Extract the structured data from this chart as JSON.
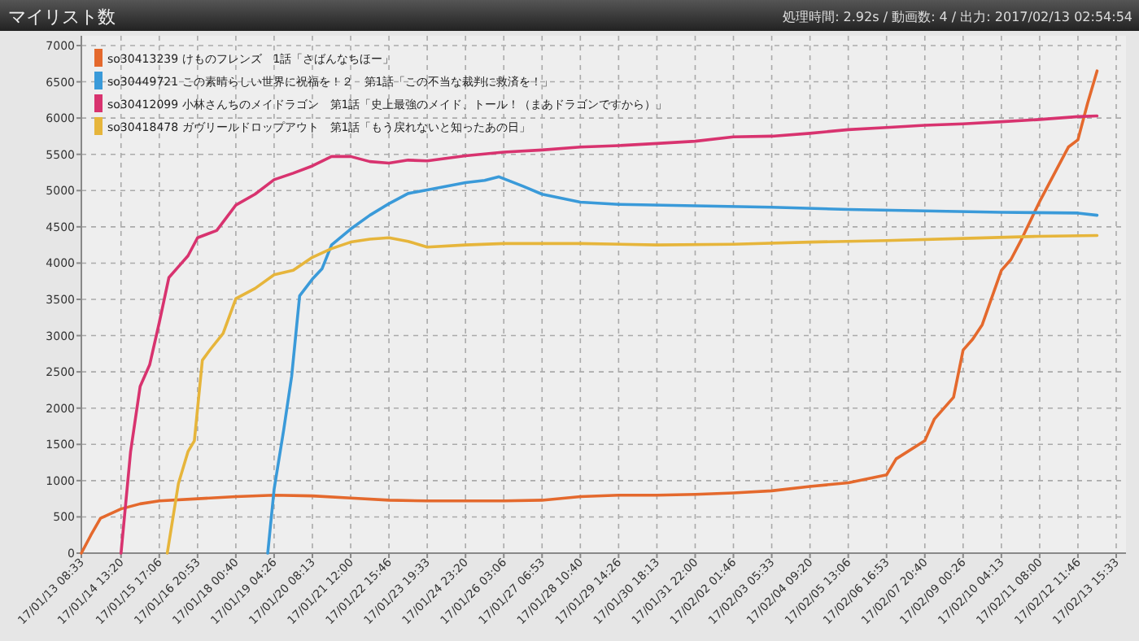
{
  "chart_data": {
    "type": "line",
    "title": "マイリスト数",
    "annotations": [
      "処理時間: 2.92s / 動画数: 4 / 出力: 2017/02/13 02:54:54"
    ],
    "xlim": [
      "2017-01-13T08:33",
      "2017-02-13T15:33"
    ],
    "xticks": [
      {
        "value": "2017-01-13T08:33",
        "label": "17/01/13 08:33"
      },
      {
        "value": "2017-01-14T13:20",
        "label": "17/01/14 13:20"
      },
      {
        "value": "2017-01-15T17:06",
        "label": "17/01/15 17:06"
      },
      {
        "value": "2017-01-16T20:53",
        "label": "17/01/16 20:53"
      },
      {
        "value": "2017-01-18T00:40",
        "label": "17/01/18 00:40"
      },
      {
        "value": "2017-01-19T04:26",
        "label": "17/01/19 04:26"
      },
      {
        "value": "2017-01-20T08:13",
        "label": "17/01/20 08:13"
      },
      {
        "value": "2017-01-21T12:00",
        "label": "17/01/21 12:00"
      },
      {
        "value": "2017-01-22T15:46",
        "label": "17/01/22 15:46"
      },
      {
        "value": "2017-01-23T19:33",
        "label": "17/01/23 19:33"
      },
      {
        "value": "2017-01-24T23:20",
        "label": "17/01/24 23:20"
      },
      {
        "value": "2017-01-26T03:06",
        "label": "17/01/26 03:06"
      },
      {
        "value": "2017-01-27T06:53",
        "label": "17/01/27 06:53"
      },
      {
        "value": "2017-01-28T10:40",
        "label": "17/01/28 10:40"
      },
      {
        "value": "2017-01-29T14:26",
        "label": "17/01/29 14:26"
      },
      {
        "value": "2017-01-30T18:13",
        "label": "17/01/30 18:13"
      },
      {
        "value": "2017-01-31T22:00",
        "label": "17/01/31 22:00"
      },
      {
        "value": "2017-02-02T01:46",
        "label": "17/02/02 01:46"
      },
      {
        "value": "2017-02-03T05:33",
        "label": "17/02/03 05:33"
      },
      {
        "value": "2017-02-04T09:20",
        "label": "17/02/04 09:20"
      },
      {
        "value": "2017-02-05T13:06",
        "label": "17/02/05 13:06"
      },
      {
        "value": "2017-02-06T16:53",
        "label": "17/02/06 16:53"
      },
      {
        "value": "2017-02-07T20:40",
        "label": "17/02/07 20:40"
      },
      {
        "value": "2017-02-09T00:26",
        "label": "17/02/09 00:26"
      },
      {
        "value": "2017-02-10T04:13",
        "label": "17/02/10 04:13"
      },
      {
        "value": "2017-02-11T08:00",
        "label": "17/02/11 08:00"
      },
      {
        "value": "2017-02-12T11:46",
        "label": "17/02/12 11:46"
      },
      {
        "value": "2017-02-13T15:33",
        "label": "17/02/13 15:33"
      }
    ],
    "ylim": [
      0,
      7000
    ],
    "yticks": [
      0,
      500,
      1000,
      1500,
      2000,
      2500,
      3000,
      3500,
      4000,
      4500,
      5000,
      5500,
      6000,
      6500,
      7000
    ],
    "grid": true,
    "legend": "top left",
    "series": [
      {
        "name": "so30413239 けものフレンズ　1話「さばんなちほー」",
        "color": "#e4692d",
        "x": [
          "2017-01-13T08:33",
          "2017-01-13T15:30",
          "2017-01-13T22:26",
          "2017-01-14T13:20",
          "2017-01-15T03:13",
          "2017-01-15T17:06",
          "2017-01-16T20:53",
          "2017-01-18T00:40",
          "2017-01-19T04:26",
          "2017-01-20T08:13",
          "2017-01-21T12:00",
          "2017-01-22T15:46",
          "2017-01-23T19:33",
          "2017-01-24T23:20",
          "2017-01-26T03:06",
          "2017-01-27T06:53",
          "2017-01-28T10:40",
          "2017-01-29T14:26",
          "2017-01-30T18:13",
          "2017-01-31T22:00",
          "2017-02-02T01:46",
          "2017-02-03T05:33",
          "2017-02-04T09:20",
          "2017-02-05T13:06",
          "2017-02-06T16:53",
          "2017-02-06T23:50",
          "2017-02-07T20:40",
          "2017-02-08T03:37",
          "2017-02-08T17:30",
          "2017-02-09T00:26",
          "2017-02-09T07:23",
          "2017-02-09T14:19",
          "2017-02-10T04:13",
          "2017-02-10T11:10",
          "2017-02-10T18:06",
          "2017-02-11T08:00",
          "2017-02-11T21:53",
          "2017-02-12T04:50",
          "2017-02-12T11:46",
          "2017-02-12T18:43",
          "2017-02-13T01:39"
        ],
        "values": [
          0,
          250,
          480,
          610,
          680,
          720,
          750,
          780,
          800,
          790,
          760,
          730,
          720,
          720,
          720,
          730,
          780,
          800,
          800,
          810,
          830,
          860,
          920,
          970,
          1080,
          1300,
          1550,
          1850,
          2150,
          2800,
          2950,
          3150,
          3900,
          4050,
          4300,
          4850,
          5350,
          5600,
          5700,
          6200,
          6650
        ]
      },
      {
        "name": "so30449721 この素晴らしい世界に祝福を！２　第1話「この不当な裁判に救済を！」",
        "color": "#3a9ad9",
        "x": [
          "2017-01-18T23:49",
          "2017-01-19T04:26",
          "2017-01-19T11:23",
          "2017-01-19T17:10",
          "2017-01-19T22:58",
          "2017-01-20T08:13",
          "2017-01-20T15:10",
          "2017-01-20T22:06",
          "2017-01-21T12:00",
          "2017-01-22T01:53",
          "2017-01-22T15:46",
          "2017-01-23T05:39",
          "2017-01-23T19:33",
          "2017-01-24T23:20",
          "2017-01-25T13:13",
          "2017-01-25T23:38",
          "2017-01-26T16:59",
          "2017-01-27T06:53",
          "2017-01-28T10:40",
          "2017-01-29T14:26",
          "2017-01-31T22:00",
          "2017-02-03T05:33",
          "2017-02-05T13:06",
          "2017-02-07T20:40",
          "2017-02-10T04:13",
          "2017-02-12T11:46",
          "2017-02-13T01:39"
        ],
        "values": [
          0,
          880,
          1700,
          2440,
          3550,
          3780,
          3920,
          4250,
          4470,
          4660,
          4820,
          4960,
          5010,
          5110,
          5140,
          5190,
          5060,
          4950,
          4840,
          4810,
          4790,
          4770,
          4740,
          4720,
          4700,
          4690,
          4660
        ]
      },
      {
        "name": "so30412099 小林さんちのメイドラゴン　第1話「史上最強のメイド、トール！（まあドラゴンですから）」",
        "color": "#d8336f",
        "x": [
          "2017-01-14T13:20",
          "2017-01-14T20:17",
          "2017-01-15T03:13",
          "2017-01-15T10:10",
          "2017-01-15T17:06",
          "2017-01-16T00:03",
          "2017-01-16T06:59",
          "2017-01-16T13:56",
          "2017-01-16T20:53",
          "2017-01-17T10:46",
          "2017-01-18T00:40",
          "2017-01-18T14:33",
          "2017-01-19T04:26",
          "2017-01-19T18:19",
          "2017-01-20T08:13",
          "2017-01-20T22:06",
          "2017-01-21T12:00",
          "2017-01-22T01:53",
          "2017-01-22T15:46",
          "2017-01-23T05:39",
          "2017-01-23T19:33",
          "2017-01-24T23:20",
          "2017-01-26T03:06",
          "2017-01-27T06:53",
          "2017-01-28T10:40",
          "2017-01-29T14:26",
          "2017-01-30T18:13",
          "2017-01-31T22:00",
          "2017-02-02T01:46",
          "2017-02-03T05:33",
          "2017-02-04T09:20",
          "2017-02-05T13:06",
          "2017-02-06T16:53",
          "2017-02-07T20:40",
          "2017-02-09T00:26",
          "2017-02-10T04:13",
          "2017-02-11T08:00",
          "2017-02-12T11:46",
          "2017-02-13T01:39"
        ],
        "values": [
          0,
          1400,
          2300,
          2600,
          3180,
          3800,
          3950,
          4100,
          4350,
          4450,
          4800,
          4950,
          5150,
          5240,
          5340,
          5470,
          5470,
          5400,
          5380,
          5420,
          5410,
          5480,
          5530,
          5560,
          5600,
          5620,
          5650,
          5680,
          5740,
          5750,
          5790,
          5840,
          5870,
          5900,
          5920,
          5950,
          5980,
          6020,
          6030
        ]
      },
      {
        "name": "so30418478 ガヴリールドロップアウト　第1話「もう戻れないと知ったあの日」",
        "color": "#e6b53b",
        "x": [
          "2017-01-15T22:54",
          "2017-01-16T06:59",
          "2017-01-16T13:56",
          "2017-01-16T18:34",
          "2017-01-17T00:21",
          "2017-01-17T06:09",
          "2017-01-17T15:25",
          "2017-01-18T00:40",
          "2017-01-18T14:33",
          "2017-01-19T04:26",
          "2017-01-19T18:19",
          "2017-01-20T08:13",
          "2017-01-20T22:06",
          "2017-01-21T12:00",
          "2017-01-22T01:53",
          "2017-01-22T15:46",
          "2017-01-23T05:39",
          "2017-01-23T19:33",
          "2017-01-24T23:20",
          "2017-01-26T03:06",
          "2017-01-28T10:40",
          "2017-01-30T18:13",
          "2017-02-02T01:46",
          "2017-02-04T09:20",
          "2017-02-06T16:53",
          "2017-02-09T00:26",
          "2017-02-11T08:00",
          "2017-02-13T01:39"
        ],
        "values": [
          0,
          960,
          1400,
          1550,
          2660,
          2810,
          3030,
          3510,
          3650,
          3840,
          3900,
          4080,
          4200,
          4290,
          4330,
          4350,
          4300,
          4220,
          4250,
          4270,
          4270,
          4250,
          4260,
          4290,
          4310,
          4340,
          4370,
          4380
        ]
      }
    ]
  }
}
